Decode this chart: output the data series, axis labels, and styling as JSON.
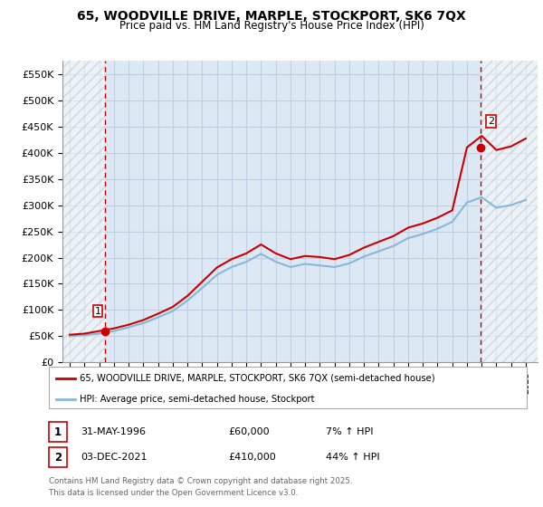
{
  "title1": "65, WOODVILLE DRIVE, MARPLE, STOCKPORT, SK6 7QX",
  "title2": "Price paid vs. HM Land Registry's House Price Index (HPI)",
  "ylim": [
    0,
    575000
  ],
  "yticks": [
    0,
    50000,
    100000,
    150000,
    200000,
    250000,
    300000,
    350000,
    400000,
    450000,
    500000,
    550000
  ],
  "ytick_labels": [
    "£0",
    "£50K",
    "£100K",
    "£150K",
    "£200K",
    "£250K",
    "£300K",
    "£350K",
    "£400K",
    "£450K",
    "£500K",
    "£550K"
  ],
  "xlim_start": 1993.5,
  "xlim_end": 2025.8,
  "grid_color": "#c0d0e0",
  "grid_bg": "#dce8f4",
  "sale1_x": 1996.41,
  "sale1_y": 60000,
  "sale2_x": 2021.92,
  "sale2_y": 410000,
  "sale1_date": "31-MAY-1996",
  "sale1_price": "£60,000",
  "sale1_hpi": "7% ↑ HPI",
  "sale2_date": "03-DEC-2021",
  "sale2_price": "£410,000",
  "sale2_hpi": "44% ↑ HPI",
  "red_color": "#cc0000",
  "blue_color": "#88b8d8",
  "dashed_red": "#cc0000",
  "legend1": "65, WOODVILLE DRIVE, MARPLE, STOCKPORT, SK6 7QX (semi-detached house)",
  "legend2": "HPI: Average price, semi-detached house, Stockport",
  "footnote1": "Contains HM Land Registry data © Crown copyright and database right 2025.",
  "footnote2": "This data is licensed under the Open Government Licence v3.0.",
  "hpi_years": [
    1994,
    1995,
    1996,
    1997,
    1998,
    1999,
    2000,
    2001,
    2002,
    2003,
    2004,
    2005,
    2006,
    2007,
    2008,
    2009,
    2010,
    2011,
    2012,
    2013,
    2014,
    2015,
    2016,
    2017,
    2018,
    2019,
    2020,
    2021,
    2022,
    2023,
    2024,
    2025
  ],
  "hpi_values": [
    50000,
    52000,
    55000,
    60000,
    67000,
    75000,
    86000,
    98000,
    118000,
    142000,
    167000,
    182000,
    192000,
    207000,
    192000,
    182000,
    188000,
    185000,
    182000,
    189000,
    202000,
    212000,
    222000,
    237000,
    245000,
    255000,
    268000,
    305000,
    315000,
    295000,
    300000,
    310000
  ],
  "property_years": [
    1994,
    1995,
    1996,
    1997,
    1998,
    1999,
    2000,
    2001,
    2002,
    2003,
    2004,
    2005,
    2006,
    2007,
    2008,
    2009,
    2010,
    2011,
    2012,
    2013,
    2014,
    2015,
    2016,
    2017,
    2018,
    2019,
    2020,
    2021,
    2022,
    2023,
    2024,
    2025
  ],
  "property_values": [
    53000,
    55000,
    60000,
    65000,
    72000,
    81000,
    93000,
    106000,
    127000,
    154000,
    181000,
    197000,
    208000,
    225000,
    208000,
    197000,
    203000,
    201000,
    197000,
    205000,
    219000,
    230000,
    241000,
    257000,
    265000,
    276000,
    290000,
    410000,
    432000,
    405000,
    412000,
    427000
  ]
}
